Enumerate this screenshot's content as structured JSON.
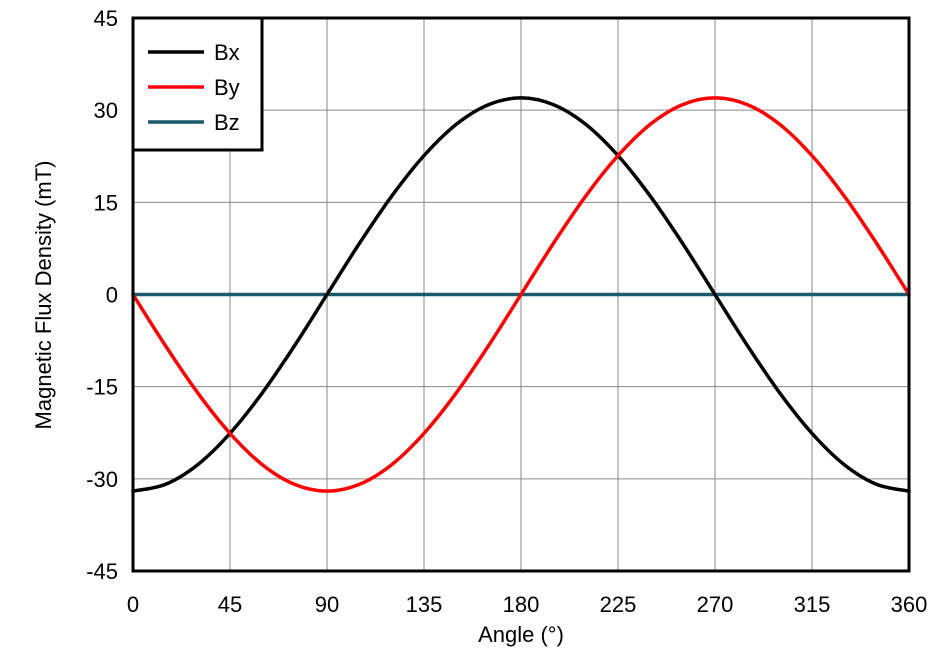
{
  "chart_data": {
    "type": "line",
    "title": "",
    "xlabel": "Angle (°)",
    "ylabel": "Magnetic Flux Density (mT)",
    "xlim": [
      0,
      360
    ],
    "ylim": [
      -45,
      45
    ],
    "x_ticks": [
      0,
      45,
      90,
      135,
      180,
      225,
      270,
      315,
      360
    ],
    "y_ticks": [
      45,
      30,
      15,
      0,
      -15,
      -30,
      -45
    ],
    "x": [
      0,
      15,
      30,
      45,
      60,
      75,
      90,
      105,
      120,
      135,
      150,
      165,
      180,
      195,
      210,
      225,
      240,
      255,
      270,
      285,
      300,
      315,
      330,
      345,
      360
    ],
    "grid": true,
    "legend": "top-left",
    "series": [
      {
        "name": "Bx",
        "color": "#000000",
        "values": [
          -32,
          -30.9,
          -27.7,
          -22.6,
          -16,
          -8.3,
          0,
          8.3,
          16,
          22.6,
          27.7,
          30.9,
          32,
          30.9,
          27.7,
          22.6,
          16,
          8.3,
          0,
          -8.3,
          -16,
          -22.6,
          -27.7,
          -30.9,
          -32
        ]
      },
      {
        "name": "By",
        "color": "#ff0000",
        "values": [
          0,
          -8.3,
          -16,
          -22.6,
          -27.7,
          -30.9,
          -32,
          -30.9,
          -27.7,
          -22.6,
          -16,
          -8.3,
          0,
          8.3,
          16,
          22.6,
          27.7,
          30.9,
          32,
          30.9,
          27.7,
          22.6,
          16,
          8.3,
          0
        ]
      },
      {
        "name": "Bz",
        "color": "#1a5a6a",
        "values": [
          0,
          0,
          0,
          0,
          0,
          0,
          0,
          0,
          0,
          0,
          0,
          0,
          0,
          0,
          0,
          0,
          0,
          0,
          0,
          0,
          0,
          0,
          0,
          0,
          0
        ]
      }
    ]
  }
}
